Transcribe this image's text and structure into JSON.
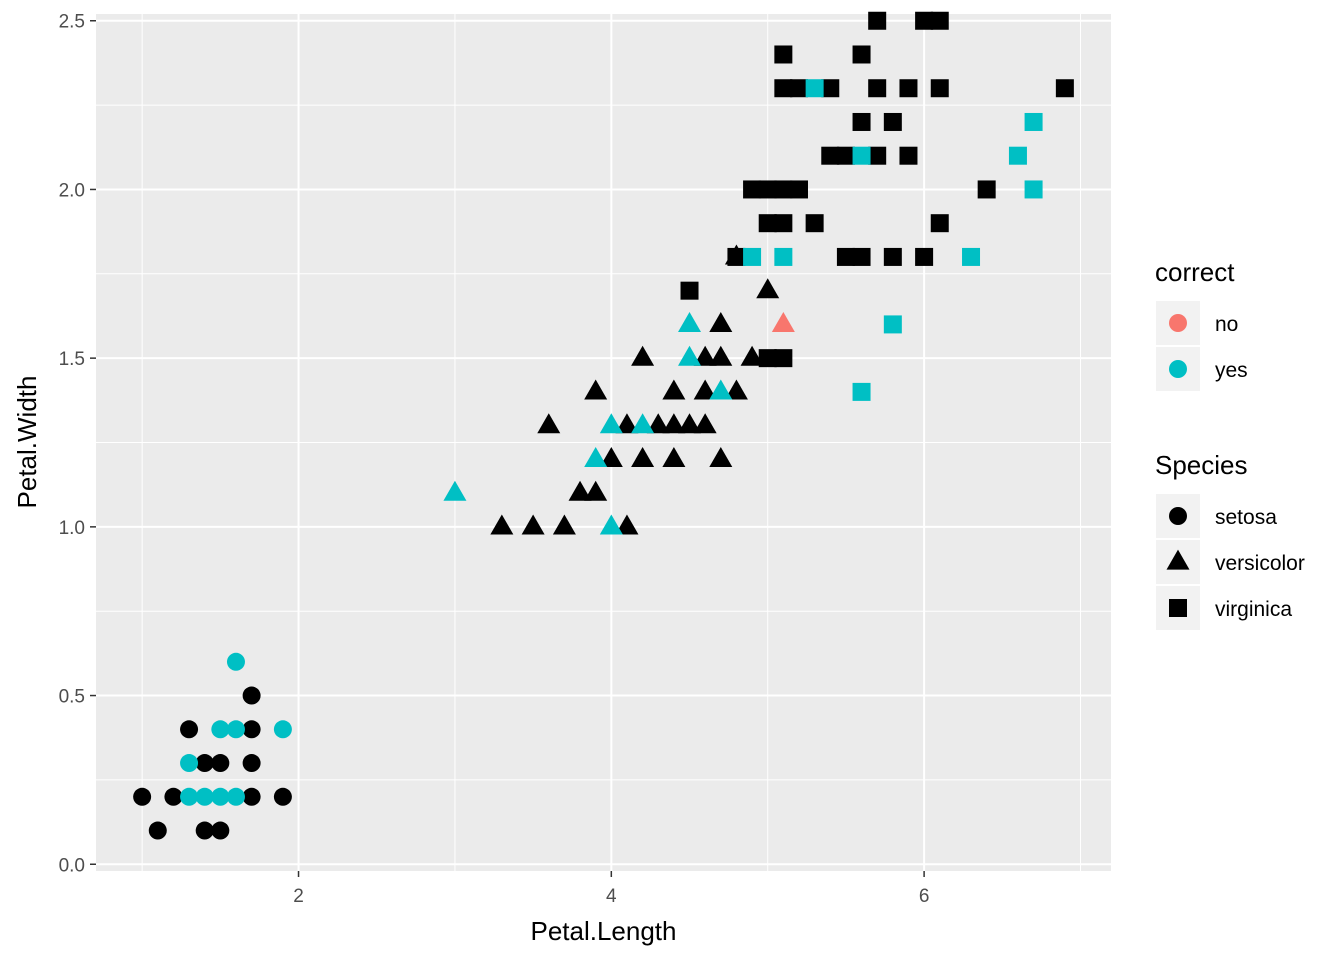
{
  "chart_data": {
    "type": "scatter",
    "title": "",
    "xlabel": "Petal.Length",
    "ylabel": "Petal.Width",
    "xlim": [
      0.705,
      7.195
    ],
    "ylim": [
      -0.02,
      2.52
    ],
    "x_ticks": [
      2,
      4,
      6
    ],
    "x_tick_labels": [
      "2",
      "4",
      "6"
    ],
    "y_ticks": [
      0.0,
      0.5,
      1.0,
      1.5,
      2.0,
      2.5
    ],
    "y_tick_labels": [
      "0.0",
      "0.5",
      "1.0",
      "1.5",
      "2.0",
      "2.5"
    ],
    "grid": true,
    "legend_position": "right",
    "colors": {
      "panel_background": "#ebebeb",
      "grid": "#ffffff",
      "no": "#F8766D",
      "yes": "#00BFC4",
      "default_point": "#000000",
      "legend_key_background": "#f2f2f2"
    },
    "legend": {
      "color_title": "correct",
      "color_entries": [
        {
          "label": "no",
          "color": "#F8766D"
        },
        {
          "label": "yes",
          "color": "#00BFC4"
        }
      ],
      "shape_title": "Species",
      "shape_entries": [
        {
          "label": "setosa",
          "shape": "circle"
        },
        {
          "label": "versicolor",
          "shape": "triangle"
        },
        {
          "label": "virginica",
          "shape": "square"
        }
      ]
    },
    "series": [
      {
        "species": "setosa",
        "shape": "circle",
        "points": [
          {
            "x": 1.0,
            "y": 0.2
          },
          {
            "x": 1.1,
            "y": 0.1
          },
          {
            "x": 1.2,
            "y": 0.2
          },
          {
            "x": 1.3,
            "y": 0.4
          },
          {
            "x": 1.4,
            "y": 0.3
          },
          {
            "x": 1.4,
            "y": 0.1
          },
          {
            "x": 1.5,
            "y": 0.3
          },
          {
            "x": 1.5,
            "y": 0.1
          },
          {
            "x": 1.7,
            "y": 0.5
          },
          {
            "x": 1.7,
            "y": 0.4
          },
          {
            "x": 1.7,
            "y": 0.3
          },
          {
            "x": 1.7,
            "y": 0.2
          },
          {
            "x": 1.9,
            "y": 0.2
          },
          {
            "x": 1.3,
            "y": 0.3,
            "correct": "yes"
          },
          {
            "x": 1.3,
            "y": 0.2,
            "correct": "yes"
          },
          {
            "x": 1.4,
            "y": 0.2,
            "correct": "yes"
          },
          {
            "x": 1.5,
            "y": 0.4,
            "correct": "yes"
          },
          {
            "x": 1.5,
            "y": 0.2,
            "correct": "yes"
          },
          {
            "x": 1.6,
            "y": 0.6,
            "correct": "yes"
          },
          {
            "x": 1.6,
            "y": 0.4,
            "correct": "yes"
          },
          {
            "x": 1.6,
            "y": 0.2,
            "correct": "yes"
          },
          {
            "x": 1.9,
            "y": 0.4,
            "correct": "yes"
          }
        ]
      },
      {
        "species": "versicolor",
        "shape": "triangle",
        "points": [
          {
            "x": 3.3,
            "y": 1.0
          },
          {
            "x": 3.5,
            "y": 1.0
          },
          {
            "x": 3.7,
            "y": 1.0
          },
          {
            "x": 4.1,
            "y": 1.0
          },
          {
            "x": 3.8,
            "y": 1.1
          },
          {
            "x": 3.9,
            "y": 1.1
          },
          {
            "x": 4.0,
            "y": 1.2
          },
          {
            "x": 4.2,
            "y": 1.2
          },
          {
            "x": 4.4,
            "y": 1.2
          },
          {
            "x": 4.7,
            "y": 1.2
          },
          {
            "x": 3.6,
            "y": 1.3
          },
          {
            "x": 4.1,
            "y": 1.3
          },
          {
            "x": 4.3,
            "y": 1.3
          },
          {
            "x": 4.4,
            "y": 1.3
          },
          {
            "x": 4.5,
            "y": 1.3
          },
          {
            "x": 4.6,
            "y": 1.3
          },
          {
            "x": 3.9,
            "y": 1.4
          },
          {
            "x": 4.4,
            "y": 1.4
          },
          {
            "x": 4.6,
            "y": 1.4
          },
          {
            "x": 4.8,
            "y": 1.4
          },
          {
            "x": 4.2,
            "y": 1.5
          },
          {
            "x": 4.6,
            "y": 1.5
          },
          {
            "x": 4.7,
            "y": 1.5
          },
          {
            "x": 4.9,
            "y": 1.5
          },
          {
            "x": 4.7,
            "y": 1.6
          },
          {
            "x": 5.0,
            "y": 1.7
          },
          {
            "x": 4.8,
            "y": 1.8
          },
          {
            "x": 3.0,
            "y": 1.1,
            "correct": "yes"
          },
          {
            "x": 3.9,
            "y": 1.2,
            "correct": "yes"
          },
          {
            "x": 4.0,
            "y": 1.3,
            "correct": "yes"
          },
          {
            "x": 4.2,
            "y": 1.3,
            "correct": "yes"
          },
          {
            "x": 4.7,
            "y": 1.4,
            "correct": "yes"
          },
          {
            "x": 4.5,
            "y": 1.5,
            "correct": "yes"
          },
          {
            "x": 4.5,
            "y": 1.6,
            "correct": "yes"
          },
          {
            "x": 4.0,
            "y": 1.0,
            "correct": "yes"
          },
          {
            "x": 5.1,
            "y": 1.6,
            "correct": "no"
          }
        ]
      },
      {
        "species": "virginica",
        "shape": "square",
        "points": [
          {
            "x": 5.7,
            "y": 2.5
          },
          {
            "x": 6.0,
            "y": 2.5
          },
          {
            "x": 6.1,
            "y": 2.5
          },
          {
            "x": 5.1,
            "y": 2.4
          },
          {
            "x": 5.6,
            "y": 2.4
          },
          {
            "x": 5.1,
            "y": 2.3
          },
          {
            "x": 5.2,
            "y": 2.3
          },
          {
            "x": 5.4,
            "y": 2.3
          },
          {
            "x": 5.7,
            "y": 2.3
          },
          {
            "x": 5.9,
            "y": 2.3
          },
          {
            "x": 6.1,
            "y": 2.3
          },
          {
            "x": 6.9,
            "y": 2.3
          },
          {
            "x": 5.6,
            "y": 2.2
          },
          {
            "x": 5.8,
            "y": 2.2
          },
          {
            "x": 5.4,
            "y": 2.1
          },
          {
            "x": 5.5,
            "y": 2.1
          },
          {
            "x": 5.7,
            "y": 2.1
          },
          {
            "x": 5.9,
            "y": 2.1
          },
          {
            "x": 4.9,
            "y": 2.0
          },
          {
            "x": 5.0,
            "y": 2.0
          },
          {
            "x": 5.1,
            "y": 2.0
          },
          {
            "x": 5.2,
            "y": 2.0
          },
          {
            "x": 6.4,
            "y": 2.0
          },
          {
            "x": 5.0,
            "y": 1.9
          },
          {
            "x": 5.1,
            "y": 1.9
          },
          {
            "x": 5.3,
            "y": 1.9
          },
          {
            "x": 6.1,
            "y": 1.9
          },
          {
            "x": 4.8,
            "y": 1.8
          },
          {
            "x": 5.5,
            "y": 1.8
          },
          {
            "x": 5.6,
            "y": 1.8
          },
          {
            "x": 5.8,
            "y": 1.8
          },
          {
            "x": 6.0,
            "y": 1.8
          },
          {
            "x": 4.5,
            "y": 1.7
          },
          {
            "x": 5.0,
            "y": 1.5
          },
          {
            "x": 5.1,
            "y": 1.5
          },
          {
            "x": 5.3,
            "y": 2.3,
            "correct": "yes"
          },
          {
            "x": 5.6,
            "y": 2.1,
            "correct": "yes"
          },
          {
            "x": 6.7,
            "y": 2.2,
            "correct": "yes"
          },
          {
            "x": 6.6,
            "y": 2.1,
            "correct": "yes"
          },
          {
            "x": 6.7,
            "y": 2.0,
            "correct": "yes"
          },
          {
            "x": 4.9,
            "y": 1.8,
            "correct": "yes"
          },
          {
            "x": 5.1,
            "y": 1.8,
            "correct": "yes"
          },
          {
            "x": 6.3,
            "y": 1.8,
            "correct": "yes"
          },
          {
            "x": 5.8,
            "y": 1.6,
            "correct": "yes"
          },
          {
            "x": 5.6,
            "y": 1.4,
            "correct": "yes"
          }
        ]
      }
    ]
  }
}
